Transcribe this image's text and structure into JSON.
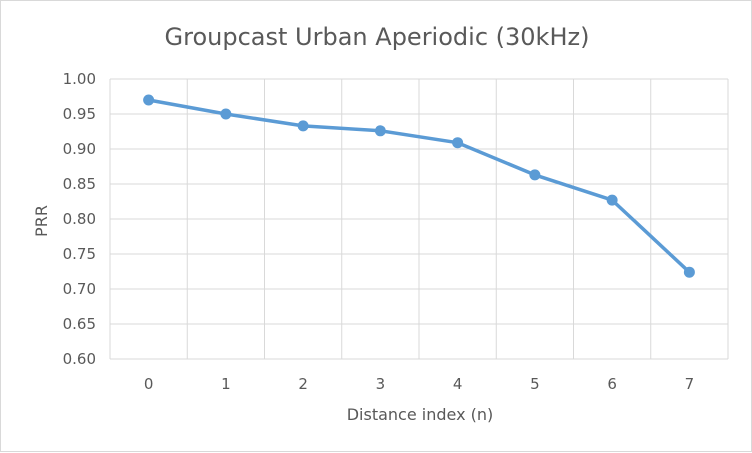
{
  "chart_data": {
    "type": "line",
    "title": "Groupcast Urban Aperiodic (30kHz)",
    "xlabel": "Distance index (n)",
    "ylabel": "PRR",
    "categories": [
      "0",
      "1",
      "2",
      "3",
      "4",
      "5",
      "6",
      "7"
    ],
    "series": [
      {
        "values": [
          0.97,
          0.95,
          0.933,
          0.926,
          0.909,
          0.863,
          0.827,
          0.724
        ]
      }
    ],
    "ylim": [
      0.6,
      1.0
    ],
    "ytick_labels": [
      "0.60",
      "0.65",
      "0.70",
      "0.75",
      "0.80",
      "0.85",
      "0.90",
      "0.95",
      "1.00"
    ],
    "grid": true,
    "legend": "none",
    "colors": {
      "line": "#5b9bd5",
      "grid": "#d9d9d9",
      "text": "#595959"
    }
  }
}
